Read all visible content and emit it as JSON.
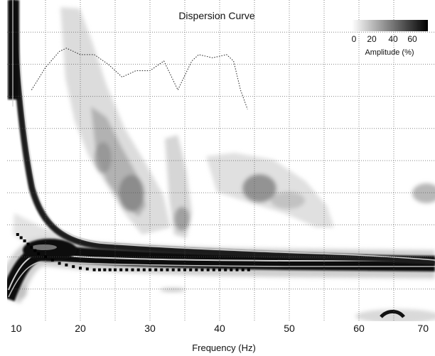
{
  "chart_data": {
    "type": "heatmap",
    "title": "Dispersion Curve",
    "xlabel": "Frequency (Hz)",
    "ylabel": "",
    "xlim": [
      10,
      70
    ],
    "x_ticks": [
      10,
      20,
      30,
      40,
      50,
      60,
      70
    ],
    "x_tick_labels": [
      "10",
      "20",
      "30",
      "40",
      "50",
      "60",
      "70"
    ],
    "grid": true,
    "colorbar": {
      "label": "Amplitude (%)",
      "tick_labels": [
        "0",
        "20",
        "40",
        "60"
      ],
      "colors": [
        "#ffffff",
        "#000000"
      ]
    },
    "series": [
      {
        "style": "dotted-thin",
        "x": [
          13,
          15,
          17,
          18,
          20,
          22,
          24,
          26,
          28,
          30,
          32,
          34,
          36,
          37,
          39,
          41,
          42,
          43,
          44
        ],
        "y": [
          0.28,
          0.21,
          0.16,
          0.15,
          0.17,
          0.17,
          0.2,
          0.24,
          0.22,
          0.22,
          0.19,
          0.28,
          0.19,
          0.17,
          0.18,
          0.17,
          0.19,
          0.28,
          0.34
        ]
      },
      {
        "style": "dashed-thick",
        "x": [
          11,
          12,
          13,
          14,
          15,
          16,
          17,
          18,
          19,
          20,
          22,
          25,
          30,
          35,
          40,
          45
        ],
        "y": [
          0.73,
          0.75,
          0.77,
          0.79,
          0.8,
          0.81,
          0.82,
          0.825,
          0.83,
          0.835,
          0.84,
          0.84,
          0.84,
          0.84,
          0.84,
          0.84
        ]
      }
    ]
  }
}
